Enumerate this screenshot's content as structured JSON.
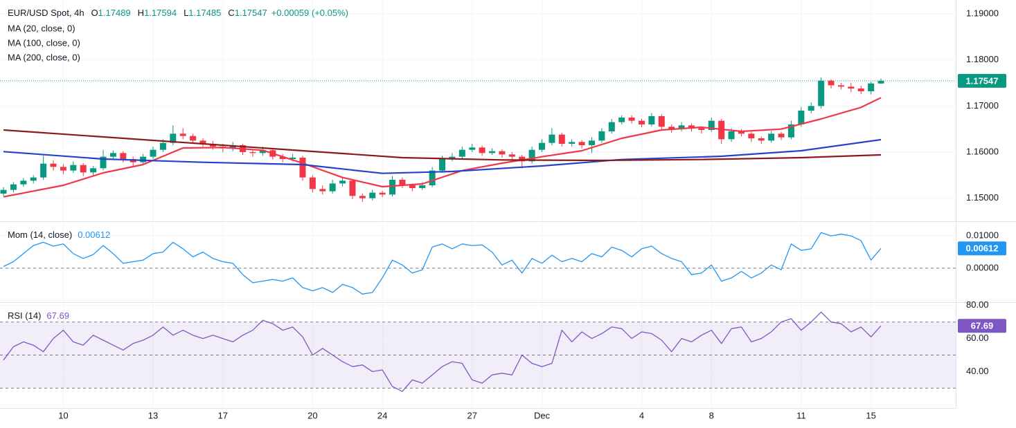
{
  "chart_data": [
    {
      "type": "candlestick",
      "title": "EUR/USD Spot, 4h",
      "ohlc_labels": [
        "O",
        "H",
        "L",
        "C"
      ],
      "change_label": "+0.00059 (+0.05%)",
      "up_color": "#089981",
      "down_color": "#f23645",
      "ohlc": [
        [
          1.151,
          1.1524,
          1.1505,
          1.1518
        ],
        [
          1.1518,
          1.1535,
          1.1512,
          1.153
        ],
        [
          1.153,
          1.1544,
          1.1525,
          1.1538
        ],
        [
          1.1538,
          1.155,
          1.1532,
          1.1545
        ],
        [
          1.1545,
          1.1592,
          1.154,
          1.1575
        ],
        [
          1.1575,
          1.1582,
          1.156,
          1.1568
        ],
        [
          1.1568,
          1.1574,
          1.1552,
          1.156
        ],
        [
          1.156,
          1.158,
          1.1555,
          1.1572
        ],
        [
          1.1572,
          1.1576,
          1.1548,
          1.1556
        ],
        [
          1.1556,
          1.157,
          1.155,
          1.1565
        ],
        [
          1.1565,
          1.1605,
          1.156,
          1.159
        ],
        [
          1.159,
          1.1604,
          1.1584,
          1.1598
        ],
        [
          1.1598,
          1.1602,
          1.1578,
          1.1585
        ],
        [
          1.1585,
          1.159,
          1.157,
          1.1578
        ],
        [
          1.1578,
          1.1596,
          1.1572,
          1.159
        ],
        [
          1.159,
          1.1612,
          1.1585,
          1.1605
        ],
        [
          1.1605,
          1.1628,
          1.16,
          1.162
        ],
        [
          1.162,
          1.1658,
          1.1615,
          1.164
        ],
        [
          1.164,
          1.1652,
          1.1628,
          1.1635
        ],
        [
          1.1635,
          1.164,
          1.1618,
          1.1625
        ],
        [
          1.1625,
          1.163,
          1.161,
          1.1618
        ],
        [
          1.1618,
          1.1624,
          1.1605,
          1.1612
        ],
        [
          1.1612,
          1.1618,
          1.16,
          1.1608
        ],
        [
          1.1608,
          1.1622,
          1.1602,
          1.1615
        ],
        [
          1.1615,
          1.1618,
          1.1594,
          1.16
        ],
        [
          1.16,
          1.1606,
          1.159,
          1.1598
        ],
        [
          1.1598,
          1.1612,
          1.1592,
          1.1604
        ],
        [
          1.1604,
          1.1608,
          1.1584,
          1.159
        ],
        [
          1.159,
          1.1596,
          1.1578,
          1.1585
        ],
        [
          1.1585,
          1.1596,
          1.158,
          1.1588
        ],
        [
          1.1588,
          1.1592,
          1.1538,
          1.1545
        ],
        [
          1.1545,
          1.155,
          1.1512,
          1.152
        ],
        [
          1.152,
          1.1528,
          1.1508,
          1.1515
        ],
        [
          1.1515,
          1.154,
          1.151,
          1.1532
        ],
        [
          1.1532,
          1.1545,
          1.1525,
          1.1538
        ],
        [
          1.1538,
          1.1542,
          1.1498,
          1.1505
        ],
        [
          1.1505,
          1.151,
          1.1492,
          1.15
        ],
        [
          1.15,
          1.1518,
          1.1495,
          1.1512
        ],
        [
          1.1512,
          1.1516,
          1.1502,
          1.1508
        ],
        [
          1.1508,
          1.1548,
          1.1504,
          1.154
        ],
        [
          1.154,
          1.1545,
          1.1522,
          1.1528
        ],
        [
          1.1528,
          1.1532,
          1.1515,
          1.1522
        ],
        [
          1.1522,
          1.1535,
          1.1518,
          1.1528
        ],
        [
          1.1528,
          1.1568,
          1.1524,
          1.156
        ],
        [
          1.156,
          1.1592,
          1.1555,
          1.1585
        ],
        [
          1.1585,
          1.1598,
          1.158,
          1.159
        ],
        [
          1.159,
          1.1612,
          1.1586,
          1.1605
        ],
        [
          1.1605,
          1.1618,
          1.16,
          1.161
        ],
        [
          1.161,
          1.1614,
          1.1592,
          1.1598
        ],
        [
          1.1598,
          1.1608,
          1.1594,
          1.1602
        ],
        [
          1.1602,
          1.1606,
          1.1588,
          1.1595
        ],
        [
          1.1595,
          1.16,
          1.1584,
          1.159
        ],
        [
          1.159,
          1.1594,
          1.1565,
          1.158
        ],
        [
          1.158,
          1.1612,
          1.1575,
          1.1605
        ],
        [
          1.1605,
          1.1628,
          1.16,
          1.162
        ],
        [
          1.162,
          1.1652,
          1.1615,
          1.1638
        ],
        [
          1.1638,
          1.1642,
          1.1612,
          1.1618
        ],
        [
          1.1618,
          1.1628,
          1.1612,
          1.1622
        ],
        [
          1.1622,
          1.1626,
          1.1608,
          1.1615
        ],
        [
          1.1615,
          1.1632,
          1.1598,
          1.1625
        ],
        [
          1.1625,
          1.1652,
          1.162,
          1.1645
        ],
        [
          1.1645,
          1.1672,
          1.164,
          1.1665
        ],
        [
          1.1665,
          1.168,
          1.166,
          1.1675
        ],
        [
          1.1675,
          1.168,
          1.1662,
          1.1668
        ],
        [
          1.1668,
          1.1672,
          1.1654,
          1.166
        ],
        [
          1.166,
          1.1685,
          1.1655,
          1.1678
        ],
        [
          1.1678,
          1.1682,
          1.1648,
          1.1655
        ],
        [
          1.1655,
          1.166,
          1.1642,
          1.165
        ],
        [
          1.165,
          1.1665,
          1.1645,
          1.1658
        ],
        [
          1.1658,
          1.1662,
          1.1644,
          1.1652
        ],
        [
          1.1652,
          1.1656,
          1.164,
          1.1648
        ],
        [
          1.1648,
          1.1675,
          1.1644,
          1.1668
        ],
        [
          1.1668,
          1.1672,
          1.1618,
          1.1628
        ],
        [
          1.1628,
          1.1652,
          1.1622,
          1.1645
        ],
        [
          1.1645,
          1.165,
          1.1634,
          1.164
        ],
        [
          1.164,
          1.1644,
          1.1622,
          1.163
        ],
        [
          1.163,
          1.1634,
          1.1618,
          1.1625
        ],
        [
          1.1625,
          1.1646,
          1.162,
          1.164
        ],
        [
          1.164,
          1.1644,
          1.1626,
          1.1632
        ],
        [
          1.1632,
          1.1668,
          1.1628,
          1.166
        ],
        [
          1.166,
          1.1698,
          1.1655,
          1.169
        ],
        [
          1.169,
          1.1708,
          1.1684,
          1.17
        ],
        [
          1.17,
          1.1762,
          1.1695,
          1.1755
        ],
        [
          1.1755,
          1.1758,
          1.1738,
          1.1745
        ],
        [
          1.1745,
          1.175,
          1.1736,
          1.1742
        ],
        [
          1.1742,
          1.175,
          1.173,
          1.1738
        ],
        [
          1.1738,
          1.1744,
          1.1726,
          1.1732
        ],
        [
          1.1732,
          1.1752,
          1.1725,
          1.1749
        ],
        [
          1.17489,
          1.17594,
          1.17485,
          1.17547
        ]
      ],
      "series": [
        {
          "name": "MA (20, close, 0)",
          "color": "#f23645",
          "x": [
            0,
            6,
            10,
            14,
            18,
            22,
            26,
            30,
            34,
            38,
            42,
            46,
            50,
            54,
            58,
            62,
            66,
            70,
            74,
            78,
            82,
            86,
            88
          ],
          "values": [
            1.1503,
            1.1528,
            1.1555,
            1.1573,
            1.1609,
            1.161,
            1.1604,
            1.1576,
            1.1545,
            1.1525,
            1.1531,
            1.156,
            1.1576,
            1.159,
            1.1603,
            1.163,
            1.1648,
            1.1654,
            1.1645,
            1.165,
            1.1672,
            1.1697,
            1.1718
          ]
        },
        {
          "name": "MA (100, close, 0)",
          "color": "#2443c8",
          "x": [
            0,
            10,
            20,
            30,
            38,
            45,
            54,
            62,
            72,
            80,
            88
          ],
          "values": [
            1.1601,
            1.1585,
            1.1578,
            1.1573,
            1.1554,
            1.1558,
            1.157,
            1.1584,
            1.1591,
            1.1603,
            1.1627
          ]
        },
        {
          "name": "MA (200, close, 0)",
          "color": "#8b1a1a",
          "x": [
            0,
            10,
            20,
            30,
            40,
            50,
            60,
            70,
            80,
            88
          ],
          "values": [
            1.1648,
            1.1633,
            1.1618,
            1.1603,
            1.1588,
            1.1583,
            1.1582,
            1.1584,
            1.1588,
            1.1594
          ]
        }
      ],
      "xlim": [
        -0.35,
        95.5
      ],
      "ylim": [
        1.145,
        1.193
      ],
      "yticks": [
        {
          "value": 1.15,
          "label": "1.15000"
        },
        {
          "value": 1.16,
          "label": "1.16000"
        },
        {
          "value": 1.17,
          "label": "1.17000"
        },
        {
          "value": 1.18,
          "label": "1.18000"
        },
        {
          "value": 1.19,
          "label": "1.19000"
        }
      ]
    },
    {
      "type": "line",
      "title": "Mom (14, close)",
      "color": "#2196f3",
      "values": [
        0.0005,
        0.002,
        0.0045,
        0.007,
        0.008,
        0.0068,
        0.0075,
        0.0045,
        0.003,
        0.0042,
        0.007,
        0.0045,
        0.0015,
        0.002,
        0.0025,
        0.0045,
        0.005,
        0.008,
        0.006,
        0.0035,
        0.005,
        0.003,
        0.002,
        0.0015,
        -0.002,
        -0.0045,
        -0.004,
        -0.0035,
        -0.004,
        -0.003,
        -0.006,
        -0.007,
        -0.006,
        -0.0075,
        -0.005,
        -0.006,
        -0.008,
        -0.0075,
        -0.003,
        0.0025,
        0.001,
        -0.0015,
        -0.0005,
        0.0065,
        0.0075,
        0.006,
        0.0075,
        0.007,
        0.0072,
        0.005,
        0.001,
        0.0025,
        -0.0015,
        0.003,
        0.0015,
        0.004,
        0.002,
        0.003,
        0.002,
        0.0045,
        0.0035,
        0.0065,
        0.0055,
        0.0035,
        0.006,
        0.0068,
        0.0045,
        0.003,
        0.002,
        -0.002,
        -0.0015,
        0.001,
        -0.004,
        -0.003,
        -0.001,
        -0.003,
        -0.0015,
        0.001,
        -0.0005,
        0.0075,
        0.0055,
        0.006,
        0.011,
        0.01,
        0.0105,
        0.01,
        0.0085,
        0.0025,
        0.00612
      ],
      "levels": [
        0
      ],
      "xlim": [
        -0.35,
        95.5
      ],
      "ylim": [
        -0.0105,
        0.0145
      ],
      "yticks": [
        {
          "value": 0,
          "label": "0.00000"
        },
        {
          "value": 0.01,
          "label": "0.01000"
        }
      ]
    },
    {
      "type": "line",
      "title": "RSI (14)",
      "color": "#7e57c2",
      "values": [
        47,
        55,
        58,
        56,
        52,
        60,
        65,
        58,
        56,
        62,
        59,
        56,
        53,
        57,
        59,
        62,
        67,
        62,
        65,
        62,
        60,
        62,
        60,
        58,
        62,
        65,
        71,
        69,
        65,
        67,
        61,
        50,
        54,
        50,
        46,
        43,
        44,
        40,
        41,
        31,
        28,
        35,
        33,
        38,
        43,
        46,
        45,
        35,
        33,
        38,
        39,
        38,
        50,
        45,
        43,
        45,
        65,
        58,
        64,
        60,
        63,
        67,
        66,
        60,
        64,
        63,
        59,
        52,
        60,
        58,
        62,
        65,
        57,
        66,
        67,
        58,
        60,
        64,
        70,
        72,
        65,
        70,
        76,
        70,
        69,
        64,
        67,
        61,
        67.69
      ],
      "levels": [
        30,
        50,
        70
      ],
      "band": [
        30,
        70
      ],
      "xlim": [
        -0.35,
        95.5
      ],
      "ylim": [
        18,
        82
      ],
      "yticks": [
        {
          "value": 40,
          "label": "40.00"
        },
        {
          "value": 60,
          "label": "60.00"
        },
        {
          "value": 80,
          "label": "80.00"
        }
      ],
      "xticks": [
        {
          "value": 6,
          "label": "10"
        },
        {
          "value": 15,
          "label": "13"
        },
        {
          "value": 22,
          "label": "17"
        },
        {
          "value": 31,
          "label": "20"
        },
        {
          "value": 38,
          "label": "24"
        },
        {
          "value": 47,
          "label": "27"
        },
        {
          "value": 54,
          "label": "Dec"
        },
        {
          "value": 64,
          "label": "4"
        },
        {
          "value": 71,
          "label": "8"
        },
        {
          "value": 80,
          "label": "11"
        },
        {
          "value": 87,
          "label": "15"
        }
      ]
    }
  ]
}
